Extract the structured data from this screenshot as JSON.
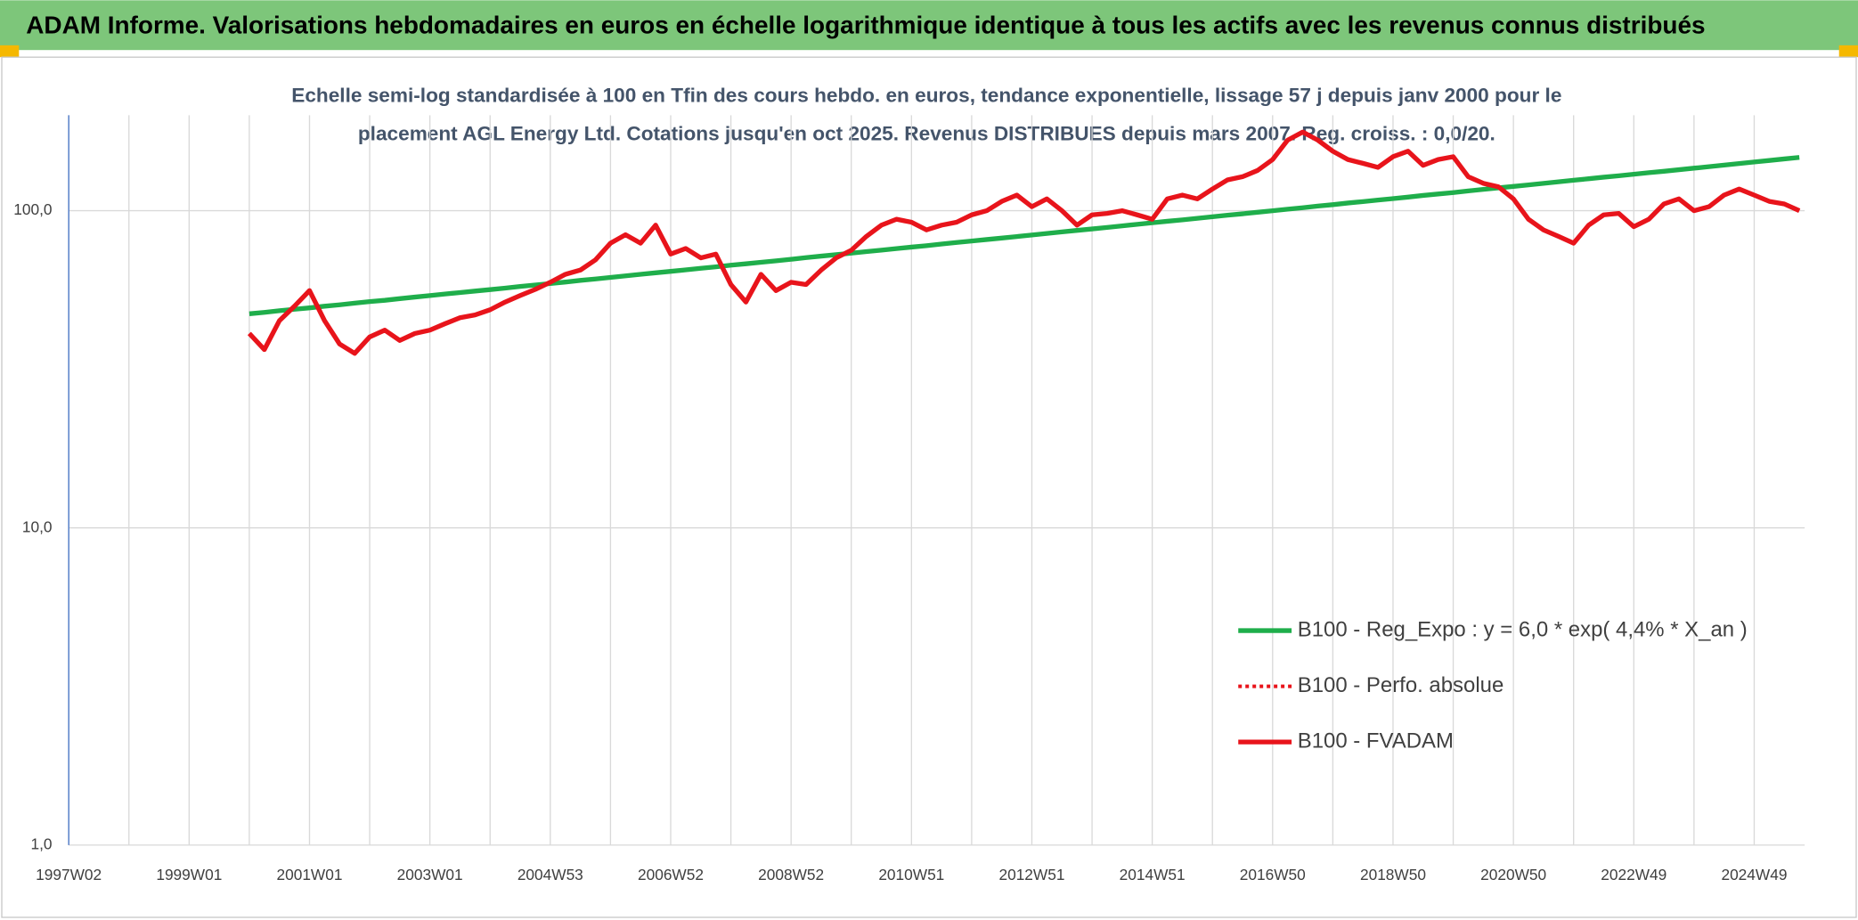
{
  "header": {
    "title": "ADAM Informe. Valorisations hebdomadaires en euros en échelle logarithmique identique à tous les actifs avec les revenus connus distribués"
  },
  "chart_data": {
    "type": "line",
    "title": [
      "Echelle semi-log standardisée à 100 en Tfin des cours hebdo. en euros, tendance exponentielle, lissage 57 j depuis janv 2000 pour le",
      "placement AGL Energy Ltd. Cotations jusqu'en oct 2025. Revenus DISTRIBUES depuis mars 2007. Reg. croiss. : 0,0/20."
    ],
    "categories": [
      "1997W02",
      null,
      null,
      null,
      null,
      null,
      null,
      null,
      "1999W01",
      null,
      null,
      null,
      null,
      null,
      null,
      null,
      "2001W01",
      null,
      null,
      null,
      null,
      null,
      null,
      null,
      "2003W01",
      null,
      null,
      null,
      null,
      null,
      null,
      null,
      "2004W53",
      null,
      null,
      null,
      null,
      null,
      null,
      null,
      "2006W52",
      null,
      null,
      null,
      null,
      null,
      null,
      null,
      "2008W52",
      null,
      null,
      null,
      null,
      null,
      null,
      null,
      "2010W51",
      null,
      null,
      null,
      null,
      null,
      null,
      null,
      "2012W51",
      null,
      null,
      null,
      null,
      null,
      null,
      null,
      "2014W51",
      null,
      null,
      null,
      null,
      null,
      null,
      null,
      "2016W50",
      null,
      null,
      null,
      null,
      null,
      null,
      null,
      "2018W50",
      null,
      null,
      null,
      null,
      null,
      null,
      null,
      "2020W50",
      null,
      null,
      null,
      null,
      null,
      null,
      null,
      "2022W49",
      null,
      null,
      null,
      null,
      null,
      null,
      null,
      "2024W49",
      null,
      null,
      null
    ],
    "log_scale": true,
    "grid": true,
    "legend": "lower right",
    "ylim": [
      1,
      200
    ],
    "yticks": [
      {
        "value": 1,
        "label": "1,0"
      },
      {
        "value": 10,
        "label": "10,0"
      },
      {
        "value": 100,
        "label": "100,0"
      }
    ],
    "series": [
      {
        "name": "B100 - Reg_Expo : y = 6,0 * exp( 4,4% *  X_an )",
        "color": "#1fae4b",
        "style": "solid",
        "values": [
          null,
          null,
          null,
          null,
          null,
          null,
          null,
          null,
          null,
          null,
          null,
          null,
          47.3,
          47.8,
          48.4,
          48.9,
          49.4,
          50.0,
          50.5,
          51.1,
          51.7,
          52.2,
          52.8,
          53.4,
          54.0,
          54.6,
          55.2,
          55.8,
          56.4,
          57.0,
          57.7,
          58.3,
          58.9,
          59.6,
          60.3,
          60.9,
          61.6,
          62.3,
          63.0,
          63.7,
          64.4,
          65.1,
          65.8,
          66.5,
          67.3,
          68.0,
          68.8,
          69.5,
          70.3,
          71.1,
          71.9,
          72.7,
          73.5,
          74.3,
          75.1,
          75.9,
          76.8,
          77.6,
          78.5,
          79.4,
          80.2,
          81.1,
          82.0,
          82.9,
          83.8,
          84.8,
          85.7,
          86.7,
          87.6,
          88.6,
          89.6,
          90.6,
          91.6,
          92.6,
          93.6,
          94.6,
          95.7,
          96.8,
          97.8,
          98.9,
          100.0,
          101.1,
          102.2,
          103.4,
          104.5,
          105.7,
          106.8,
          108.0,
          109.2,
          110.4,
          111.7,
          112.9,
          114.1,
          115.4,
          116.7,
          118.0,
          119.3,
          120.6,
          122.0,
          123.3,
          124.7,
          126.1,
          127.5,
          128.9,
          130.3,
          131.8,
          133.2,
          134.7,
          136.2,
          137.7,
          139.3,
          140.8,
          142.4,
          144.0,
          145.6,
          147.2
        ]
      },
      {
        "name": "B100 - Perfo. absolue",
        "color": "#e8141b",
        "style": "dotted",
        "values": [
          null,
          null,
          null,
          null,
          null,
          null,
          null,
          null,
          null,
          null,
          null,
          null,
          41,
          36.5,
          45,
          50,
          56,
          45,
          38,
          35.5,
          40,
          42,
          39,
          41,
          42,
          44,
          46,
          46.9,
          48.7,
          51.5,
          54,
          56.5,
          59.5,
          63,
          65,
          70,
          79,
          84,
          79,
          90,
          73,
          76,
          71,
          73,
          58.5,
          51.5,
          63,
          56,
          59.5,
          58.5,
          65,
          71,
          75,
          83,
          90,
          94,
          92,
          87,
          90,
          92,
          97,
          100,
          107,
          112,
          103,
          109,
          100,
          90,
          97,
          98,
          100,
          97,
          94,
          109,
          112,
          109,
          117,
          125,
          128,
          134,
          145,
          167,
          177,
          167,
          154,
          145,
          141,
          137,
          148,
          154,
          139,
          145,
          148,
          128,
          122,
          119,
          109,
          94,
          87,
          83,
          79,
          90,
          97,
          98,
          89,
          94,
          105,
          109,
          100,
          103,
          112,
          117,
          112,
          107,
          105,
          100
        ]
      },
      {
        "name": "B100 - FVADAM",
        "color": "#e8141b",
        "style": "solid",
        "values": [
          null,
          null,
          null,
          null,
          null,
          null,
          null,
          null,
          null,
          null,
          null,
          null,
          41,
          36.5,
          45,
          50,
          56,
          45,
          38,
          35.5,
          40,
          42,
          39,
          41,
          42,
          44,
          46,
          46.9,
          48.7,
          51.5,
          54,
          56.5,
          59.5,
          63,
          65,
          70,
          79,
          84,
          79,
          90,
          73,
          76,
          71,
          73,
          58.5,
          51.5,
          63,
          56,
          59.5,
          58.5,
          65,
          71,
          75,
          83,
          90,
          94,
          92,
          87,
          90,
          92,
          97,
          100,
          107,
          112,
          103,
          109,
          100,
          90,
          97,
          98,
          100,
          97,
          94,
          109,
          112,
          109,
          117,
          125,
          128,
          134,
          145,
          167,
          177,
          167,
          154,
          145,
          141,
          137,
          148,
          154,
          139,
          145,
          148,
          128,
          122,
          119,
          109,
          94,
          87,
          83,
          79,
          90,
          97,
          98,
          89,
          94,
          105,
          109,
          100,
          103,
          112,
          117,
          112,
          107,
          105,
          100
        ]
      }
    ]
  }
}
